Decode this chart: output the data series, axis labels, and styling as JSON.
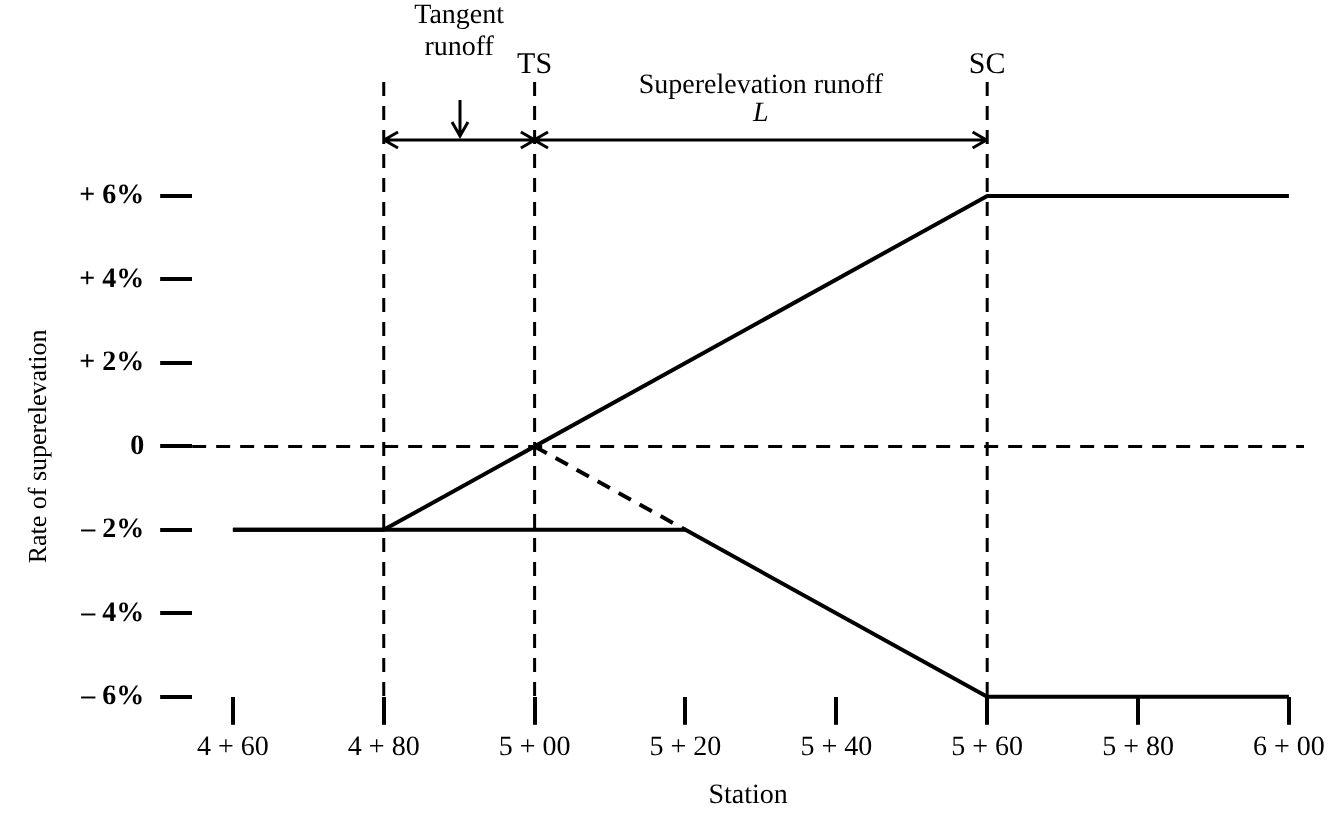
{
  "chart_data": {
    "type": "line",
    "xlabel": "Station",
    "ylabel": "Rate of superelevation",
    "ylim": [
      -6,
      6
    ],
    "categories": [
      "4 + 60",
      "4 + 80",
      "5 + 00",
      "5 + 20",
      "5 + 40",
      "5 + 60",
      "5 + 80",
      "6 + 00"
    ],
    "yticks": [
      {
        "value": 6,
        "label": "+ 6%"
      },
      {
        "value": 4,
        "label": "+ 4%"
      },
      {
        "value": 2,
        "label": "+ 2%"
      },
      0,
      {
        "value": -2,
        "label": "– 2%"
      },
      {
        "value": -4,
        "label": "– 4%"
      },
      {
        "value": -6,
        "label": "– 6%"
      }
    ],
    "series": [
      {
        "color": "#000000",
        "x": [
          "4 + 60",
          "4 + 80",
          "5 + 60",
          "6 + 00"
        ],
        "values": [
          -2,
          -2,
          6,
          6
        ]
      },
      {
        "color": "#000000",
        "x": [
          "4 + 60",
          "5 + 20",
          "5 + 60",
          "6 + 00"
        ],
        "values": [
          -2,
          -2,
          -6,
          -6
        ]
      },
      {
        "color": "#000000",
        "x": [
          "5 + 00",
          "5 + 20"
        ],
        "values": [
          0,
          -2
        ],
        "line_style": "dashed"
      }
    ],
    "ref_lines": [
      {
        "axis": "y",
        "value": 0,
        "line_style": "dashed"
      },
      {
        "axis": "x",
        "value": "4 + 80",
        "line_style": "dashed"
      },
      {
        "axis": "x",
        "value": "5 + 00",
        "label": "TS",
        "line_style": "dashed"
      },
      {
        "axis": "x",
        "value": "5 + 60",
        "label": "SC",
        "line_style": "dashed"
      }
    ],
    "annotations": [
      "Tangent runoff",
      "Superelevation runoff",
      "L"
    ],
    "grid": false,
    "legend": false,
    "marker": "none",
    "line_style": "solid"
  }
}
